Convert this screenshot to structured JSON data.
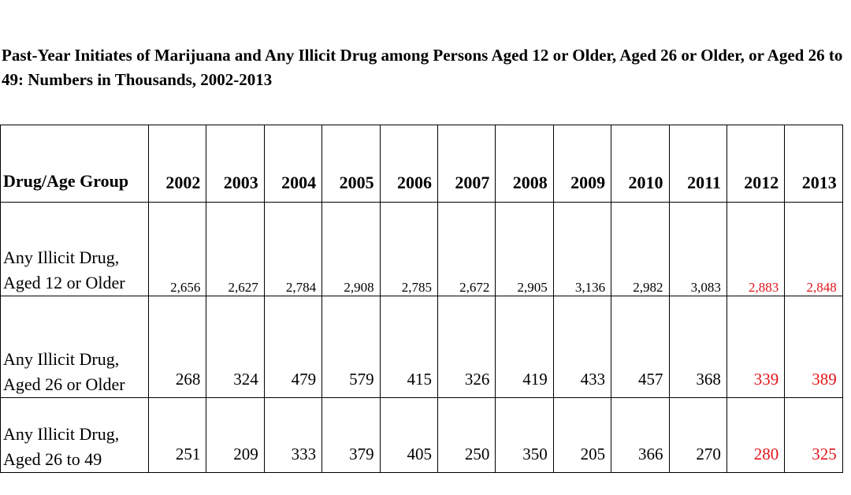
{
  "title": "Past-Year Initiates of Marijuana and Any Illicit Drug among Persons Aged 12 or Older, Aged 26 or Older, or Aged 26 to 49: Numbers in Thousands, 2002-2013",
  "colors": {
    "highlight": "#e0151b",
    "text": "#000000"
  },
  "chart_data": {
    "type": "table",
    "title": "Past-Year Initiates of Marijuana and Any Illicit Drug among Persons Aged 12 or Older, Aged 26 or Older, or Aged 26 to 49: Numbers in Thousands, 2002-2013",
    "header": "Drug/Age Group",
    "years": [
      "2002",
      "2003",
      "2004",
      "2005",
      "2006",
      "2007",
      "2008",
      "2009",
      "2010",
      "2011",
      "2012",
      "2013"
    ],
    "highlighted_years": [
      "2012",
      "2013"
    ],
    "rows": [
      {
        "label": "Any Illicit Drug, Aged 12 or Older",
        "values": [
          "2,656",
          "2,627",
          "2,784",
          "2,908",
          "2,785",
          "2,672",
          "2,905",
          "3,136",
          "2,982",
          "3,083",
          "2,883",
          "2,848"
        ]
      },
      {
        "label": "Any Illicit Drug, Aged 26 or Older",
        "values": [
          "268",
          "324",
          "479",
          "579",
          "415",
          "326",
          "419",
          "433",
          "457",
          "368",
          "339",
          "389"
        ]
      },
      {
        "label": "Any Illicit Drug, Aged 26 to 49",
        "values": [
          "251",
          "209",
          "333",
          "379",
          "405",
          "250",
          "350",
          "205",
          "366",
          "270",
          "280",
          "325"
        ]
      }
    ]
  }
}
